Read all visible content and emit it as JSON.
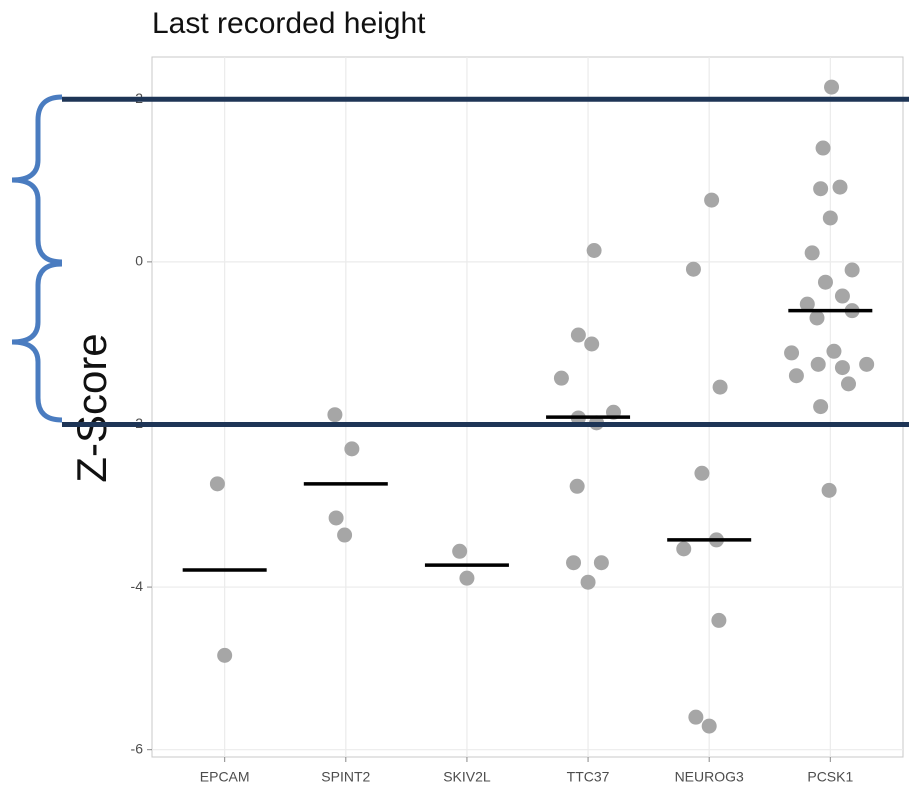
{
  "chart_data": {
    "type": "scatter",
    "title": "Last recorded height",
    "y_label": "Z-Score",
    "xlim": [
      0.4,
      6.6
    ],
    "xticks": [
      {
        "value": 1,
        "label": "EPCAM"
      },
      {
        "value": 2,
        "label": "SPINT2"
      },
      {
        "value": 3,
        "label": "SKIV2L"
      },
      {
        "value": 4,
        "label": "TTC37"
      },
      {
        "value": 5,
        "label": "NEUROG3"
      },
      {
        "value": 6,
        "label": "PCSK1"
      }
    ],
    "ylim": [
      -6.09,
      2.52
    ],
    "yticks": [
      -6,
      -4,
      -2,
      0,
      2
    ],
    "grid": true,
    "points": {
      "color": "#a6a6a6",
      "x": [
        0.94,
        1.0,
        1.91,
        2.05,
        1.92,
        1.99,
        2.94,
        3.0,
        4.05,
        3.92,
        4.03,
        3.78,
        3.92,
        4.07,
        4.21,
        3.91,
        3.88,
        4.11,
        4.0,
        5.02,
        4.87,
        5.09,
        4.94,
        4.79,
        5.06,
        5.08,
        4.89,
        5.0,
        6.01,
        5.94,
        5.92,
        6.08,
        6.0,
        5.85,
        6.18,
        5.96,
        6.1,
        5.81,
        5.89,
        6.18,
        5.68,
        6.03,
        5.9,
        6.1,
        6.3,
        5.72,
        6.15,
        5.92,
        5.99
      ],
      "values": [
        -2.73,
        -4.84,
        -1.88,
        -2.3,
        -3.15,
        -3.36,
        -3.56,
        -3.89,
        0.14,
        -0.9,
        -1.01,
        -1.43,
        -1.92,
        -1.98,
        -1.85,
        -2.76,
        -3.7,
        -3.7,
        -3.94,
        0.76,
        -0.09,
        -1.54,
        -2.6,
        -3.53,
        -3.42,
        -4.41,
        -5.6,
        -5.71,
        2.15,
        1.4,
        0.9,
        0.92,
        0.54,
        0.11,
        -0.1,
        -0.25,
        -0.42,
        -0.52,
        -0.69,
        -0.6,
        -1.12,
        -1.1,
        -1.26,
        -1.3,
        -1.26,
        -1.4,
        -1.5,
        -1.78,
        -2.81
      ]
    },
    "means": {
      "color": "#000000",
      "x": [
        1,
        2,
        3,
        4,
        5,
        6
      ],
      "values": [
        -3.79,
        -2.73,
        -3.73,
        -1.91,
        -3.42,
        -0.6
      ]
    },
    "hlines": {
      "color": "#1e3556",
      "values": [
        2,
        -2
      ]
    }
  }
}
